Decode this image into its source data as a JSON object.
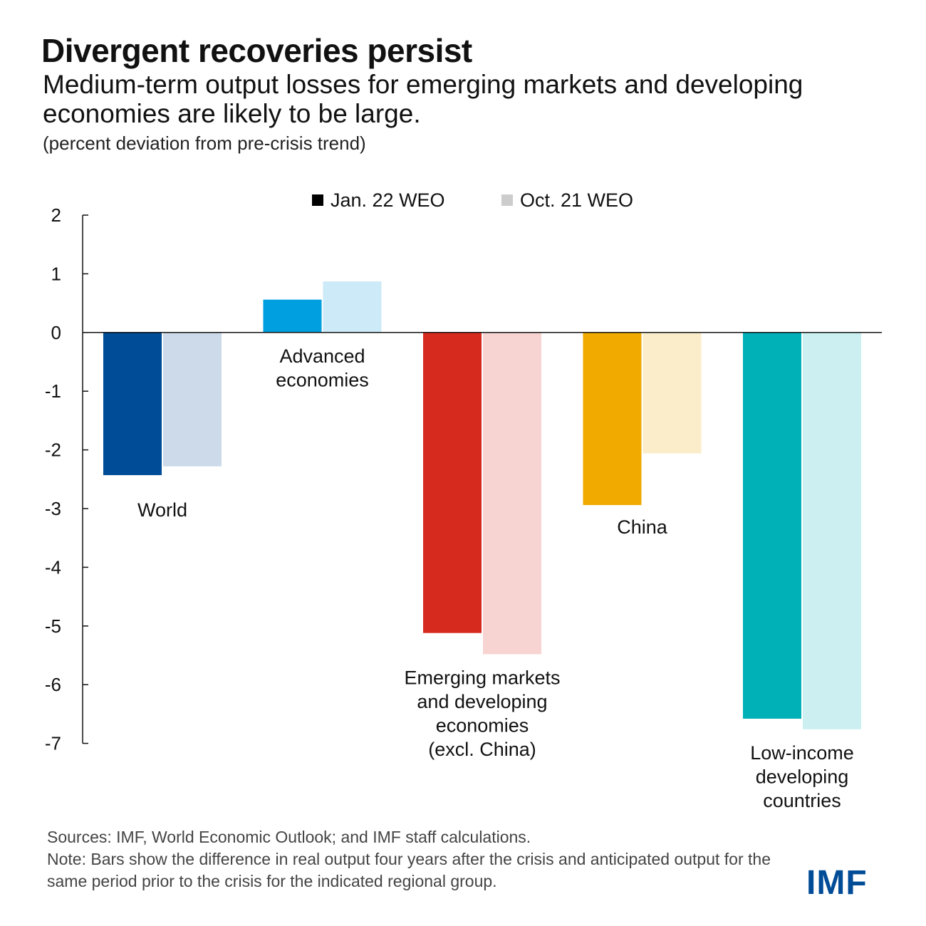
{
  "header": {
    "title": "Divergent recoveries persist",
    "subtitle": "Medium-term output losses for emerging markets and developing economies are likely to be large.",
    "unit": "(percent deviation from pre-crisis trend)"
  },
  "legend": [
    {
      "label": "Jan. 22 WEO",
      "color": "#000000"
    },
    {
      "label": "Oct. 21 WEO",
      "color": "#cccccc"
    }
  ],
  "footer": {
    "sources": "Sources: IMF, World Economic Outlook; and IMF staff calculations.",
    "note": "Note: Bars show the difference in real output four years after the crisis and anticipated output for the same period prior to the crisis for the indicated regional group.",
    "logo": "IMF"
  },
  "chart_data": {
    "type": "bar",
    "title": "Divergent recoveries persist",
    "ylim": [
      -7,
      2
    ],
    "yticks": [
      "2",
      "1",
      "0",
      "-1",
      "-2",
      "-3",
      "-4",
      "-5",
      "-6",
      "-7"
    ],
    "legend_position": "top",
    "grid": false,
    "series": [
      {
        "name": "Jan. 22 WEO",
        "values": [
          -2.43,
          0.56,
          -5.12,
          -2.94,
          -6.58
        ]
      },
      {
        "name": "Oct. 21 WEO",
        "values": [
          -2.28,
          0.87,
          -5.48,
          -2.06,
          -6.76
        ]
      }
    ],
    "categories": [
      {
        "label": [
          "World"
        ],
        "dark": "#004c97",
        "light": "#ccdaea"
      },
      {
        "label": [
          "Advanced",
          "economies"
        ],
        "dark": "#009fdf",
        "light": "#cceaf7"
      },
      {
        "label": [
          "Emerging markets",
          "and developing",
          "economies",
          "(excl. China)"
        ],
        "dark": "#d62a1f",
        "light": "#f7d4d2"
      },
      {
        "label": [
          "China"
        ],
        "dark": "#f0aa00",
        "light": "#fcedca"
      },
      {
        "label": [
          "Low-income",
          "developing",
          "countries"
        ],
        "dark": "#00b1b8",
        "light": "#cceff1"
      }
    ]
  }
}
